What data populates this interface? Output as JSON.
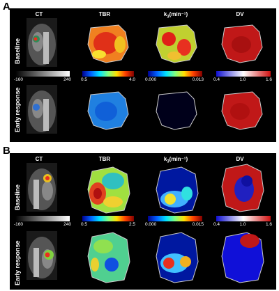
{
  "panels": [
    {
      "letter": "A",
      "columns": [
        "CT",
        "TBR",
        "k",
        "DV"
      ],
      "k_sub": "3",
      "k_unit": "(min⁻¹)",
      "rows": [
        "Baseline",
        "Early response"
      ],
      "colorbars": [
        {
          "min": "-160",
          "max": "240",
          "type": "gray"
        },
        {
          "min": "0.5",
          "max": "4.0",
          "type": "jet"
        },
        {
          "min": "0.000",
          "max": "0.013",
          "type": "jet"
        },
        {
          "min": "0.4",
          "mid": "1.0",
          "max": "1.6",
          "type": "bwr"
        }
      ]
    },
    {
      "letter": "B",
      "columns": [
        "CT",
        "TBR",
        "k",
        "DV"
      ],
      "k_sub": "3",
      "k_unit": "(min⁻¹)",
      "rows": [
        "Baseline",
        "Early response"
      ],
      "colorbars": [
        {
          "min": "-160",
          "max": "240",
          "type": "gray"
        },
        {
          "min": "0.5",
          "max": "2.5",
          "type": "jet"
        },
        {
          "min": "0.000",
          "max": "0.015",
          "type": "jet"
        },
        {
          "min": "0.4",
          "mid": "1.0",
          "max": "1.6",
          "type": "bwr"
        }
      ]
    }
  ]
}
